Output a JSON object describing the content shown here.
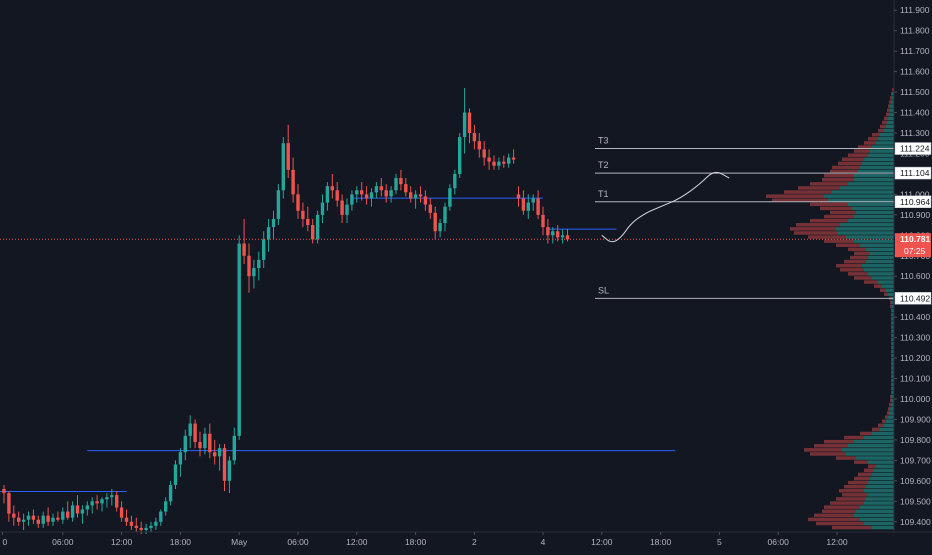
{
  "chart_data": {
    "type": "candlestick",
    "symbol_timeframe": "30m",
    "colors": {
      "background": "#131722",
      "up": "#26a69a",
      "down": "#ef5350",
      "volume_profile_up": "#26a69a",
      "volume_profile_down": "#ef5350",
      "level_line": "#b2b5be",
      "price_line": "#ef5350",
      "blue_line": "#2962ff",
      "path": "#d1d4dc",
      "axis_text": "#b2b5be"
    },
    "y_axis": {
      "min": 109.35,
      "max": 111.95,
      "ticks": [
        "111.900",
        "111.800",
        "111.700",
        "111.600",
        "111.500",
        "111.400",
        "111.300",
        "111.200",
        "111.100",
        "111.000",
        "110.900",
        "110.800",
        "110.700",
        "110.600",
        "110.500",
        "110.400",
        "110.300",
        "110.200",
        "110.100",
        "110.000",
        "109.900",
        "109.800",
        "109.700",
        "109.600",
        "109.500",
        "109.400"
      ]
    },
    "x_axis": {
      "labels": [
        {
          "text": "0",
          "t": -0.3
        },
        {
          "text": "06:00",
          "t": 12
        },
        {
          "text": "12:00",
          "t": 24
        },
        {
          "text": "18:00",
          "t": 36
        },
        {
          "text": "May",
          "t": 48
        },
        {
          "text": "06:00",
          "t": 60
        },
        {
          "text": "12:00",
          "t": 72
        },
        {
          "text": "18:00",
          "t": 84
        },
        {
          "text": "2",
          "t": 96
        },
        {
          "text": "4",
          "t": 110
        },
        {
          "text": "12:00",
          "t": 122
        },
        {
          "text": "18:00",
          "t": 134
        },
        {
          "text": "5",
          "t": 146
        },
        {
          "text": "06:00",
          "t": 158
        },
        {
          "text": "12:00",
          "t": 170
        }
      ]
    },
    "candles": [
      [
        109.56,
        109.58,
        109.49,
        109.54
      ],
      [
        109.54,
        109.55,
        109.4,
        109.44
      ],
      [
        109.44,
        109.48,
        109.38,
        109.42
      ],
      [
        109.42,
        109.45,
        109.38,
        109.4
      ],
      [
        109.4,
        109.44,
        109.36,
        109.41
      ],
      [
        109.41,
        109.45,
        109.38,
        109.43
      ],
      [
        109.43,
        109.46,
        109.39,
        109.41
      ],
      [
        109.41,
        109.43,
        109.37,
        109.39
      ],
      [
        109.39,
        109.45,
        109.37,
        109.43
      ],
      [
        109.43,
        109.47,
        109.38,
        109.4
      ],
      [
        109.4,
        109.44,
        109.38,
        109.42
      ],
      [
        109.42,
        109.45,
        109.4,
        109.41
      ],
      [
        109.41,
        109.47,
        109.39,
        109.45
      ],
      [
        109.45,
        109.5,
        109.41,
        109.42
      ],
      [
        109.42,
        109.5,
        109.4,
        109.48
      ],
      [
        109.48,
        109.53,
        109.42,
        109.44
      ],
      [
        109.44,
        109.48,
        109.39,
        109.46
      ],
      [
        109.46,
        109.5,
        109.43,
        109.48
      ],
      [
        109.48,
        109.52,
        109.44,
        109.5
      ],
      [
        109.5,
        109.53,
        109.46,
        109.49
      ],
      [
        109.49,
        109.52,
        109.45,
        109.51
      ],
      [
        109.51,
        109.54,
        109.47,
        109.52
      ],
      [
        109.52,
        109.56,
        109.48,
        109.53
      ],
      [
        109.53,
        109.55,
        109.45,
        109.47
      ],
      [
        109.47,
        109.5,
        109.4,
        109.42
      ],
      [
        109.42,
        109.46,
        109.38,
        109.4
      ],
      [
        109.4,
        109.43,
        109.36,
        109.38
      ],
      [
        109.38,
        109.42,
        109.35,
        109.37
      ],
      [
        109.37,
        109.4,
        109.34,
        109.36
      ],
      [
        109.36,
        109.39,
        109.34,
        109.37
      ],
      [
        109.37,
        109.4,
        109.35,
        109.38
      ],
      [
        109.38,
        109.42,
        109.36,
        109.4
      ],
      [
        109.4,
        109.46,
        109.38,
        109.45
      ],
      [
        109.45,
        109.52,
        109.43,
        109.5
      ],
      [
        109.5,
        109.6,
        109.48,
        109.58
      ],
      [
        109.58,
        109.7,
        109.56,
        109.68
      ],
      [
        109.68,
        109.76,
        109.62,
        109.74
      ],
      [
        109.74,
        109.85,
        109.7,
        109.82
      ],
      [
        109.82,
        109.92,
        109.76,
        109.88
      ],
      [
        109.88,
        109.9,
        109.76,
        109.79
      ],
      [
        109.79,
        109.84,
        109.72,
        109.76
      ],
      [
        109.76,
        109.86,
        109.73,
        109.83
      ],
      [
        109.83,
        109.88,
        109.71,
        109.74
      ],
      [
        109.74,
        109.8,
        109.68,
        109.72
      ],
      [
        109.72,
        109.78,
        109.65,
        109.76
      ],
      [
        109.76,
        109.78,
        109.55,
        109.6
      ],
      [
        109.6,
        109.72,
        109.54,
        109.7
      ],
      [
        109.7,
        109.86,
        109.68,
        109.82
      ],
      [
        109.82,
        110.8,
        109.8,
        110.76
      ],
      [
        110.76,
        110.88,
        110.66,
        110.7
      ],
      [
        110.7,
        110.76,
        110.52,
        110.6
      ],
      [
        110.6,
        110.68,
        110.54,
        110.64
      ],
      [
        110.64,
        110.72,
        110.58,
        110.68
      ],
      [
        110.68,
        110.82,
        110.64,
        110.78
      ],
      [
        110.78,
        110.88,
        110.72,
        110.84
      ],
      [
        110.84,
        110.92,
        110.78,
        110.88
      ],
      [
        110.88,
        111.05,
        110.85,
        111.02
      ],
      [
        111.02,
        111.28,
        110.98,
        111.25
      ],
      [
        111.25,
        111.34,
        111.08,
        111.12
      ],
      [
        111.12,
        111.18,
        110.96,
        111.0
      ],
      [
        111.0,
        111.05,
        110.88,
        110.92
      ],
      [
        110.92,
        110.96,
        110.84,
        110.88
      ],
      [
        110.88,
        110.94,
        110.82,
        110.85
      ],
      [
        110.85,
        110.88,
        110.76,
        110.78
      ],
      [
        110.78,
        110.92,
        110.76,
        110.9
      ],
      [
        110.9,
        111.0,
        110.86,
        110.96
      ],
      [
        110.96,
        111.06,
        110.92,
        111.04
      ],
      [
        111.04,
        111.1,
        110.98,
        111.02
      ],
      [
        111.02,
        111.06,
        110.94,
        110.97
      ],
      [
        110.97,
        111.0,
        110.86,
        110.9
      ],
      [
        110.9,
        110.98,
        110.86,
        110.95
      ],
      [
        110.95,
        111.02,
        110.92,
        111.0
      ],
      [
        111.0,
        111.04,
        110.96,
        111.02
      ],
      [
        111.02,
        111.06,
        110.97,
        111.0
      ],
      [
        111.0,
        111.04,
        110.95,
        110.98
      ],
      [
        110.98,
        111.03,
        110.94,
        111.01
      ],
      [
        111.01,
        111.06,
        110.98,
        111.04
      ],
      [
        111.04,
        111.08,
        110.99,
        111.02
      ],
      [
        111.02,
        111.05,
        110.96,
        110.99
      ],
      [
        110.99,
        111.04,
        110.96,
        111.02
      ],
      [
        111.02,
        111.1,
        111.0,
        111.08
      ],
      [
        111.08,
        111.12,
        111.02,
        111.05
      ],
      [
        111.05,
        111.08,
        110.99,
        111.01
      ],
      [
        111.01,
        111.04,
        110.96,
        110.98
      ],
      [
        110.98,
        111.02,
        110.93,
        111.0
      ],
      [
        111.0,
        111.04,
        110.96,
        110.99
      ],
      [
        110.99,
        111.02,
        110.92,
        110.95
      ],
      [
        110.95,
        110.98,
        110.88,
        110.91
      ],
      [
        110.91,
        110.94,
        110.78,
        110.82
      ],
      [
        110.82,
        110.88,
        110.79,
        110.86
      ],
      [
        110.86,
        110.96,
        110.82,
        110.94
      ],
      [
        110.94,
        111.05,
        110.92,
        111.03
      ],
      [
        111.03,
        111.12,
        111.0,
        111.1
      ],
      [
        111.1,
        111.3,
        111.08,
        111.28
      ],
      [
        111.28,
        111.52,
        111.2,
        111.4
      ],
      [
        111.4,
        111.42,
        111.25,
        111.3
      ],
      [
        111.3,
        111.34,
        111.22,
        111.26
      ],
      [
        111.26,
        111.3,
        111.18,
        111.22
      ],
      [
        111.22,
        111.26,
        111.14,
        111.18
      ],
      [
        111.18,
        111.22,
        111.12,
        111.16
      ],
      [
        111.16,
        111.19,
        111.12,
        111.14
      ],
      [
        111.14,
        111.18,
        111.12,
        111.16
      ],
      [
        111.16,
        111.19,
        111.13,
        111.15
      ],
      [
        111.15,
        111.2,
        111.13,
        111.18
      ],
      [
        111.18,
        111.22,
        111.15,
        111.17
      ],
      [
        111.0,
        111.04,
        110.94,
        110.98
      ],
      [
        110.98,
        111.02,
        110.9,
        110.92
      ],
      [
        110.92,
        111.0,
        110.88,
        110.96
      ],
      [
        110.96,
        111.0,
        110.92,
        110.98
      ],
      [
        110.98,
        111.02,
        110.88,
        110.9
      ],
      [
        110.9,
        110.94,
        110.8,
        110.84
      ],
      [
        110.84,
        110.88,
        110.76,
        110.8
      ],
      [
        110.8,
        110.84,
        110.76,
        110.82
      ],
      [
        110.82,
        110.85,
        110.77,
        110.79
      ],
      [
        110.79,
        110.83,
        110.76,
        110.8
      ],
      [
        110.8,
        110.83,
        110.77,
        110.78
      ]
    ],
    "levels": [
      {
        "label": "T3",
        "price": 111.224
      },
      {
        "label": "T2",
        "price": 111.104
      },
      {
        "label": "T1",
        "price": 110.964
      },
      {
        "label": "SL",
        "price": 110.492
      }
    ],
    "price_badges": [
      {
        "text": "111.224",
        "price": 111.224
      },
      {
        "text": "111.104",
        "price": 111.104
      },
      {
        "text": "110.964",
        "price": 110.964
      },
      {
        "text": "110.492",
        "price": 110.492
      }
    ],
    "current_price": {
      "value": "110.781",
      "price": 110.781,
      "countdown": "07:25"
    },
    "blue_lines": [
      {
        "price": 109.548,
        "t_start": -1,
        "t_end": 25
      },
      {
        "price": 109.748,
        "t_start": 17,
        "t_end": 137
      },
      {
        "price": 110.982,
        "t_start": 71,
        "t_end": 110
      },
      {
        "price": 110.83,
        "t_start": 111,
        "t_end": 125
      }
    ],
    "projection_path": [
      [
        122,
        110.8
      ],
      [
        124,
        110.76
      ],
      [
        126,
        110.79
      ],
      [
        128,
        110.86
      ],
      [
        131,
        110.91
      ],
      [
        134,
        110.94
      ],
      [
        138,
        110.98
      ],
      [
        142,
        111.05
      ],
      [
        145,
        111.12
      ],
      [
        148,
        111.08
      ]
    ],
    "volume_profile": {
      "bin_size": 0.02,
      "bins": [
        [
          109.36,
          62,
          22
        ],
        [
          109.38,
          78,
          30
        ],
        [
          109.4,
          86,
          34
        ],
        [
          109.42,
          80,
          40
        ],
        [
          109.44,
          72,
          38
        ],
        [
          109.46,
          70,
          34
        ],
        [
          109.48,
          64,
          30
        ],
        [
          109.5,
          58,
          28
        ],
        [
          109.52,
          52,
          26
        ],
        [
          109.54,
          55,
          30
        ],
        [
          109.56,
          50,
          28
        ],
        [
          109.58,
          46,
          26
        ],
        [
          109.6,
          40,
          24
        ],
        [
          109.62,
          36,
          22
        ],
        [
          109.64,
          30,
          20
        ],
        [
          109.66,
          26,
          18
        ],
        [
          109.68,
          40,
          26
        ],
        [
          109.7,
          58,
          38
        ],
        [
          109.72,
          84,
          48
        ],
        [
          109.74,
          90,
          52
        ],
        [
          109.76,
          80,
          46
        ],
        [
          109.78,
          70,
          40
        ],
        [
          109.8,
          50,
          30
        ],
        [
          109.82,
          34,
          22
        ],
        [
          109.84,
          22,
          14
        ],
        [
          109.86,
          16,
          10
        ],
        [
          109.88,
          12,
          8
        ],
        [
          109.9,
          9,
          6
        ],
        [
          109.92,
          7,
          5
        ],
        [
          109.94,
          6,
          4
        ],
        [
          109.96,
          5,
          3
        ],
        [
          109.98,
          4,
          3
        ],
        [
          110.0,
          4,
          3
        ],
        [
          110.02,
          3,
          2
        ],
        [
          110.04,
          3,
          2
        ],
        [
          110.06,
          3,
          2
        ],
        [
          110.08,
          3,
          2
        ],
        [
          110.1,
          3,
          2
        ],
        [
          110.12,
          3,
          2
        ],
        [
          110.14,
          3,
          2
        ],
        [
          110.16,
          3,
          2
        ],
        [
          110.18,
          3,
          2
        ],
        [
          110.2,
          3,
          2
        ],
        [
          110.22,
          3,
          2
        ],
        [
          110.24,
          3,
          2
        ],
        [
          110.26,
          3,
          2
        ],
        [
          110.28,
          3,
          2
        ],
        [
          110.3,
          3,
          2
        ],
        [
          110.32,
          3,
          2
        ],
        [
          110.34,
          3,
          2
        ],
        [
          110.36,
          3,
          2
        ],
        [
          110.38,
          3,
          2
        ],
        [
          110.4,
          3,
          2
        ],
        [
          110.42,
          3,
          2
        ],
        [
          110.44,
          4,
          2
        ],
        [
          110.46,
          4,
          3
        ],
        [
          110.48,
          5,
          3
        ],
        [
          110.5,
          10,
          6
        ],
        [
          110.52,
          14,
          8
        ],
        [
          110.54,
          20,
          12
        ],
        [
          110.56,
          30,
          16
        ],
        [
          110.58,
          40,
          22
        ],
        [
          110.6,
          46,
          26
        ],
        [
          110.62,
          54,
          30
        ],
        [
          110.64,
          58,
          32
        ],
        [
          110.66,
          50,
          28
        ],
        [
          110.68,
          44,
          26
        ],
        [
          110.7,
          40,
          24
        ],
        [
          110.72,
          46,
          28
        ],
        [
          110.74,
          58,
          34
        ],
        [
          110.76,
          70,
          40
        ],
        [
          110.78,
          86,
          48
        ],
        [
          110.8,
          100,
          56
        ],
        [
          110.82,
          104,
          58
        ],
        [
          110.84,
          98,
          54
        ],
        [
          110.86,
          84,
          46
        ],
        [
          110.88,
          70,
          40
        ],
        [
          110.9,
          64,
          38
        ],
        [
          110.92,
          74,
          42
        ],
        [
          110.94,
          84,
          46
        ],
        [
          110.96,
          122,
          66
        ],
        [
          110.98,
          128,
          70
        ],
        [
          111.0,
          110,
          62
        ],
        [
          111.02,
          96,
          54
        ],
        [
          111.04,
          84,
          46
        ],
        [
          111.06,
          72,
          40
        ],
        [
          111.08,
          70,
          40
        ],
        [
          111.1,
          64,
          36
        ],
        [
          111.12,
          62,
          34
        ],
        [
          111.14,
          56,
          32
        ],
        [
          111.16,
          52,
          30
        ],
        [
          111.18,
          46,
          26
        ],
        [
          111.2,
          40,
          24
        ],
        [
          111.22,
          36,
          22
        ],
        [
          111.24,
          30,
          18
        ],
        [
          111.26,
          26,
          16
        ],
        [
          111.28,
          22,
          14
        ],
        [
          111.3,
          16,
          10
        ],
        [
          111.32,
          14,
          8
        ],
        [
          111.34,
          12,
          7
        ],
        [
          111.36,
          10,
          6
        ],
        [
          111.38,
          8,
          5
        ],
        [
          111.4,
          7,
          4
        ],
        [
          111.42,
          6,
          4
        ],
        [
          111.44,
          5,
          3
        ],
        [
          111.46,
          4,
          2
        ],
        [
          111.48,
          3,
          2
        ],
        [
          111.5,
          2,
          1
        ]
      ]
    }
  }
}
